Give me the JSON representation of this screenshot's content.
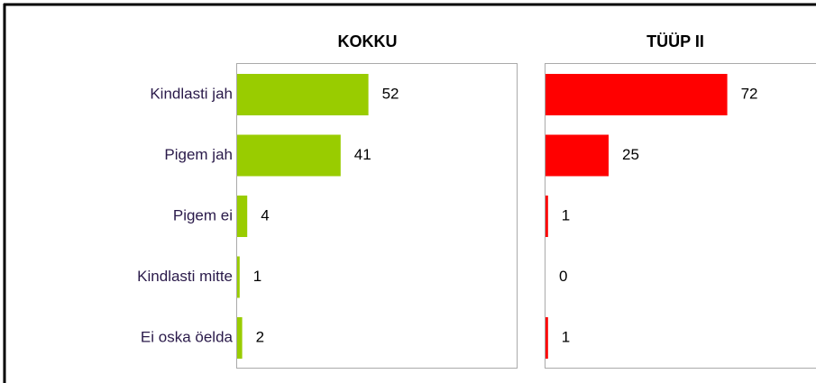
{
  "chart_data": {
    "type": "bar",
    "categories": [
      "Kindlasti jah",
      "Pigem jah",
      "Pigem ei",
      "Kindlasti mitte",
      "Ei oska öelda"
    ],
    "series": [
      {
        "name": "KOKKU",
        "color": "#99cc00",
        "values": [
          52,
          41,
          4,
          1,
          2
        ]
      },
      {
        "name": "TÜÜP II",
        "color": "#ff0000",
        "values": [
          72,
          25,
          1,
          0,
          1
        ]
      }
    ]
  }
}
